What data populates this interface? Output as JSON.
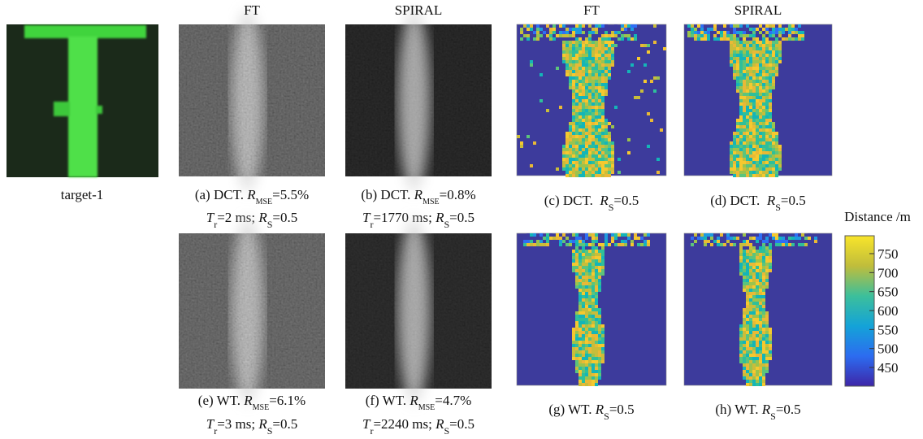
{
  "target": {
    "label": "target-1"
  },
  "column_headers": [
    "FT",
    "SPIRAL",
    "FT",
    "SPIRAL"
  ],
  "panels": [
    {
      "lines": [
        [
          {
            "text": "(a) DCT. "
          },
          {
            "text": "R",
            "style": "italic"
          },
          {
            "text": "MSE",
            "style": "sub"
          },
          {
            "text": "=5.5%"
          }
        ],
        [
          {
            "text": "T",
            "style": "italic"
          },
          {
            "text": "r",
            "style": "sub"
          },
          {
            "text": "=2 ms; "
          },
          {
            "text": "R",
            "style": "italic"
          },
          {
            "text": "S",
            "style": "sub"
          },
          {
            "text": "=0.5"
          }
        ]
      ]
    },
    {
      "lines": [
        [
          {
            "text": "(b) DCT. "
          },
          {
            "text": "R",
            "style": "italic"
          },
          {
            "text": "MSE",
            "style": "sub"
          },
          {
            "text": "=0.8%"
          }
        ],
        [
          {
            "text": "T",
            "style": "italic"
          },
          {
            "text": "r",
            "style": "sub"
          },
          {
            "text": "=1770 ms; "
          },
          {
            "text": "R",
            "style": "italic"
          },
          {
            "text": "S",
            "style": "sub"
          },
          {
            "text": "=0.5"
          }
        ]
      ]
    },
    {
      "lines": [
        [
          {
            "text": "(c) DCT.  "
          },
          {
            "text": "R",
            "style": "italic"
          },
          {
            "text": "S",
            "style": "sub"
          },
          {
            "text": "=0.5"
          }
        ]
      ]
    },
    {
      "lines": [
        [
          {
            "text": "(d) DCT.  "
          },
          {
            "text": "R",
            "style": "italic"
          },
          {
            "text": "S",
            "style": "sub"
          },
          {
            "text": "=0.5"
          }
        ]
      ]
    },
    {
      "lines": [
        [
          {
            "text": "(e) WT. "
          },
          {
            "text": "R",
            "style": "italic"
          },
          {
            "text": "MSE",
            "style": "sub"
          },
          {
            "text": "=6.1%"
          }
        ],
        [
          {
            "text": "T",
            "style": "italic"
          },
          {
            "text": "r",
            "style": "sub"
          },
          {
            "text": "=3 ms; "
          },
          {
            "text": "R",
            "style": "italic"
          },
          {
            "text": "S",
            "style": "sub"
          },
          {
            "text": "=0.5"
          }
        ]
      ]
    },
    {
      "lines": [
        [
          {
            "text": "(f) WT. "
          },
          {
            "text": "R",
            "style": "italic"
          },
          {
            "text": "MSE",
            "style": "sub"
          },
          {
            "text": "=4.7%"
          }
        ],
        [
          {
            "text": "T",
            "style": "italic"
          },
          {
            "text": "r",
            "style": "sub"
          },
          {
            "text": "=2240 ms; "
          },
          {
            "text": "R",
            "style": "italic"
          },
          {
            "text": "S",
            "style": "sub"
          },
          {
            "text": "=0.5"
          }
        ]
      ]
    },
    {
      "lines": [
        [
          {
            "text": "(g) WT. "
          },
          {
            "text": "R",
            "style": "italic"
          },
          {
            "text": "S",
            "style": "sub"
          },
          {
            "text": "=0.5"
          }
        ]
      ]
    },
    {
      "lines": [
        [
          {
            "text": "(h) WT. "
          },
          {
            "text": "R",
            "style": "italic"
          },
          {
            "text": "S",
            "style": "sub"
          },
          {
            "text": "=0.5"
          }
        ]
      ]
    }
  ],
  "colorbar": {
    "title": "Distance /m",
    "ticks": [
      750,
      700,
      650,
      600,
      550,
      500,
      450
    ]
  }
}
